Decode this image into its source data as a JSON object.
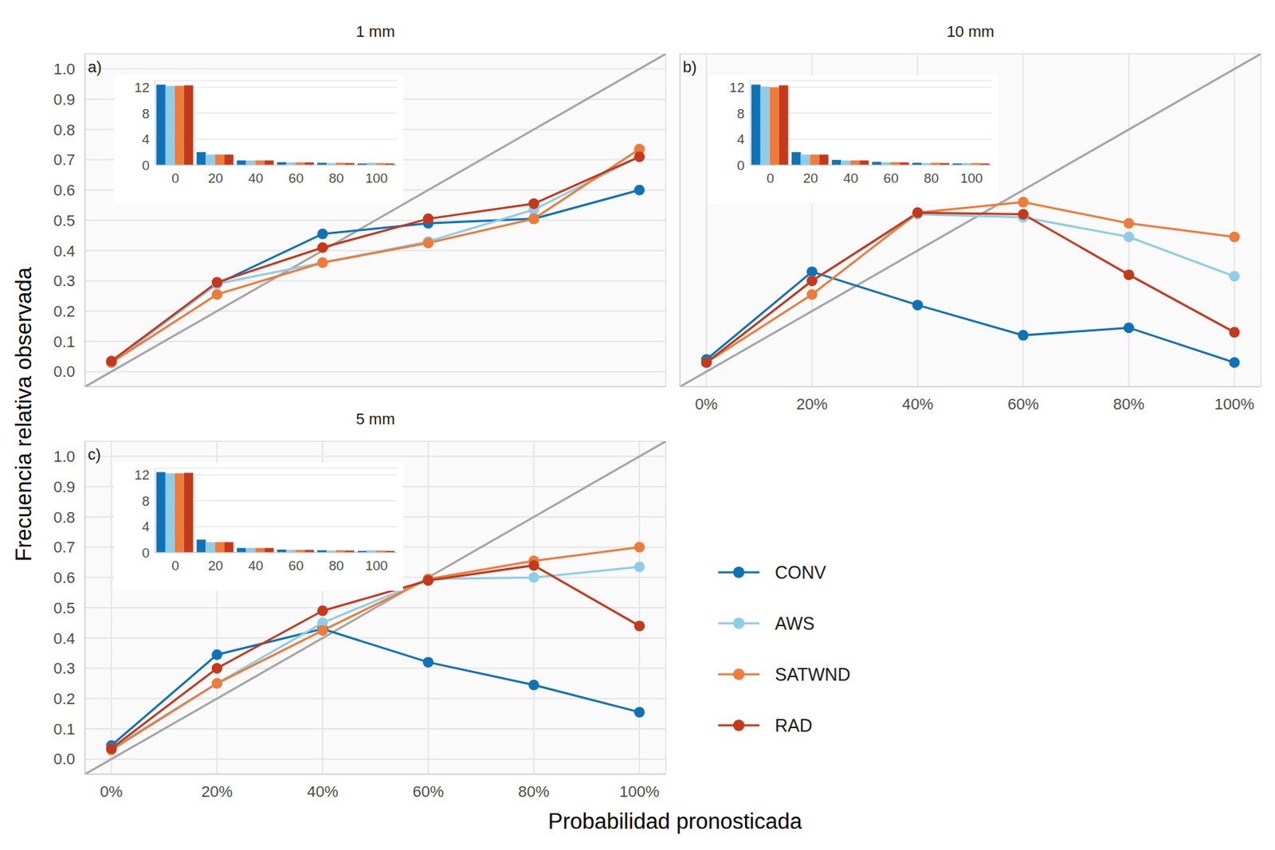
{
  "xlabel": "Probabilidad pronosticada",
  "ylabel": "Frecuencia relativa observada",
  "legend": "right",
  "chart_data": [
    {
      "type": "line",
      "title": "1 mm",
      "label": "a)",
      "grid": true,
      "marker": "circle",
      "tick_labels": "y",
      "x": [
        0,
        20,
        40,
        60,
        80,
        100
      ],
      "xlim": [
        -5,
        105
      ],
      "xticks": [
        {
          "value": 0,
          "label": "0%"
        },
        {
          "value": 20,
          "label": "20%"
        },
        {
          "value": 40,
          "label": "40%"
        },
        {
          "value": 60,
          "label": "60%"
        },
        {
          "value": 80,
          "label": "80%"
        },
        {
          "value": 100,
          "label": "100%"
        }
      ],
      "ylim": [
        -0.05,
        1.05
      ],
      "yticks": [
        {
          "value": 0,
          "label": "0.0"
        },
        0.1,
        0.2,
        0.3,
        0.4,
        0.5,
        0.6,
        0.7,
        0.8,
        0.9,
        {
          "value": 1,
          "label": "1.0"
        }
      ],
      "reference_line": {
        "x": [
          -5,
          105
        ],
        "y": [
          -0.05,
          1.05
        ]
      },
      "series": [
        {
          "name": "CONV",
          "color": "#0f72b6",
          "values": [
            0.03,
            0.29,
            0.455,
            0.49,
            0.505,
            0.6
          ]
        },
        {
          "name": "AWS",
          "color": "#8ecdea",
          "values": [
            0.03,
            0.29,
            0.36,
            0.43,
            0.535,
            0.71
          ]
        },
        {
          "name": "SATWND",
          "color": "#ee7b3a",
          "values": [
            0.03,
            0.255,
            0.36,
            0.425,
            0.505,
            0.735
          ]
        },
        {
          "name": "RAD",
          "color": "#c5381b",
          "values": [
            0.035,
            0.295,
            0.41,
            0.505,
            0.555,
            0.71
          ]
        }
      ],
      "inset": {
        "type": "bar",
        "categories": [
          0,
          20,
          40,
          60,
          80,
          100
        ],
        "ylim": [
          0,
          13
        ],
        "yticks": [
          0,
          4,
          8,
          12
        ],
        "grid": true,
        "series": [
          {
            "name": "CONV",
            "color": "#0f72b6",
            "values": [
              12.4,
              2.0,
              0.7,
              0.45,
              0.35,
              0.25
            ]
          },
          {
            "name": "AWS",
            "color": "#8ecdea",
            "values": [
              12.2,
              1.6,
              0.7,
              0.4,
              0.3,
              0.35
            ]
          },
          {
            "name": "SATWND",
            "color": "#ee7b3a",
            "values": [
              12.2,
              1.6,
              0.7,
              0.4,
              0.35,
              0.3
            ]
          },
          {
            "name": "RAD",
            "color": "#c5381b",
            "values": [
              12.3,
              1.6,
              0.7,
              0.4,
              0.3,
              0.25
            ]
          }
        ]
      }
    },
    {
      "type": "line",
      "title": "10 mm",
      "label": "b)",
      "grid": true,
      "marker": "circle",
      "tick_labels": "x",
      "x": [
        0,
        20,
        40,
        60,
        80,
        100
      ],
      "xlim": [
        -5,
        105
      ],
      "xticks": [
        {
          "value": 0,
          "label": "0%"
        },
        {
          "value": 20,
          "label": "20%"
        },
        {
          "value": 40,
          "label": "40%"
        },
        {
          "value": 60,
          "label": "60%"
        },
        {
          "value": 80,
          "label": "80%"
        },
        {
          "value": 100,
          "label": "100%"
        }
      ],
      "ylim": [
        -0.05,
        1.05
      ],
      "yticks": [
        {
          "value": 0,
          "label": "0.0"
        },
        0.1,
        0.2,
        0.3,
        0.4,
        0.5,
        0.6,
        0.7,
        0.8,
        0.9,
        {
          "value": 1,
          "label": "1.0"
        }
      ],
      "reference_line": {
        "x": [
          -5,
          105
        ],
        "y": [
          -0.05,
          1.05
        ]
      },
      "series": [
        {
          "name": "CONV",
          "color": "#0f72b6",
          "values": [
            0.04,
            0.33,
            0.22,
            0.12,
            0.145,
            0.03
          ]
        },
        {
          "name": "AWS",
          "color": "#8ecdea",
          "values": [
            0.03,
            0.3,
            0.52,
            0.51,
            0.445,
            0.315
          ]
        },
        {
          "name": "SATWND",
          "color": "#ee7b3a",
          "values": [
            0.03,
            0.255,
            0.525,
            0.56,
            0.49,
            0.445
          ]
        },
        {
          "name": "RAD",
          "color": "#c5381b",
          "values": [
            0.03,
            0.3,
            0.525,
            0.52,
            0.32,
            0.13
          ]
        }
      ],
      "inset": {
        "type": "bar",
        "categories": [
          0,
          20,
          40,
          60,
          80,
          100
        ],
        "ylim": [
          0,
          13
        ],
        "yticks": [
          0,
          4,
          8,
          12
        ],
        "grid": true,
        "series": [
          {
            "name": "CONV",
            "color": "#0f72b6",
            "values": [
              12.4,
              2.0,
              0.8,
              0.5,
              0.35,
              0.25
            ]
          },
          {
            "name": "AWS",
            "color": "#8ecdea",
            "values": [
              12.1,
              1.6,
              0.7,
              0.45,
              0.3,
              0.3
            ]
          },
          {
            "name": "SATWND",
            "color": "#ee7b3a",
            "values": [
              12.0,
              1.6,
              0.7,
              0.45,
              0.35,
              0.3
            ]
          },
          {
            "name": "RAD",
            "color": "#c5381b",
            "values": [
              12.3,
              1.6,
              0.7,
              0.4,
              0.3,
              0.25
            ]
          }
        ]
      }
    },
    {
      "type": "line",
      "title": "5 mm",
      "label": "c)",
      "grid": true,
      "marker": "circle",
      "x": [
        0,
        20,
        40,
        60,
        80,
        100
      ],
      "xlim": [
        -5,
        105
      ],
      "xticks": [
        {
          "value": 0,
          "label": "0%"
        },
        {
          "value": 20,
          "label": "20%"
        },
        {
          "value": 40,
          "label": "40%"
        },
        {
          "value": 60,
          "label": "60%"
        },
        {
          "value": 80,
          "label": "80%"
        },
        {
          "value": 100,
          "label": "100%"
        }
      ],
      "ylim": [
        -0.05,
        1.05
      ],
      "yticks": [
        {
          "value": 0,
          "label": "0.0"
        },
        0.1,
        0.2,
        0.3,
        0.4,
        0.5,
        0.6,
        0.7,
        0.8,
        0.9,
        {
          "value": 1,
          "label": "1.0"
        }
      ],
      "reference_line": {
        "x": [
          -5,
          105
        ],
        "y": [
          -0.05,
          1.05
        ]
      },
      "series": [
        {
          "name": "CONV",
          "color": "#0f72b6",
          "values": [
            0.045,
            0.345,
            0.43,
            0.32,
            0.245,
            0.155
          ]
        },
        {
          "name": "AWS",
          "color": "#8ecdea",
          "values": [
            0.035,
            0.25,
            0.45,
            0.595,
            0.6,
            0.635
          ]
        },
        {
          "name": "SATWND",
          "color": "#ee7b3a",
          "values": [
            0.03,
            0.25,
            0.425,
            0.595,
            0.655,
            0.7
          ]
        },
        {
          "name": "RAD",
          "color": "#c5381b",
          "values": [
            0.035,
            0.3,
            0.49,
            0.59,
            0.64,
            0.44
          ]
        }
      ],
      "inset": {
        "type": "bar",
        "categories": [
          0,
          20,
          40,
          60,
          80,
          100
        ],
        "ylim": [
          0,
          13
        ],
        "yticks": [
          0,
          4,
          8,
          12
        ],
        "grid": true,
        "series": [
          {
            "name": "CONV",
            "color": "#0f72b6",
            "values": [
              12.4,
              2.0,
              0.7,
              0.45,
              0.35,
              0.25
            ]
          },
          {
            "name": "AWS",
            "color": "#8ecdea",
            "values": [
              12.2,
              1.6,
              0.7,
              0.4,
              0.3,
              0.35
            ]
          },
          {
            "name": "SATWND",
            "color": "#ee7b3a",
            "values": [
              12.2,
              1.6,
              0.7,
              0.4,
              0.35,
              0.3
            ]
          },
          {
            "name": "RAD",
            "color": "#c5381b",
            "values": [
              12.3,
              1.6,
              0.7,
              0.4,
              0.3,
              0.25
            ]
          }
        ]
      }
    }
  ]
}
